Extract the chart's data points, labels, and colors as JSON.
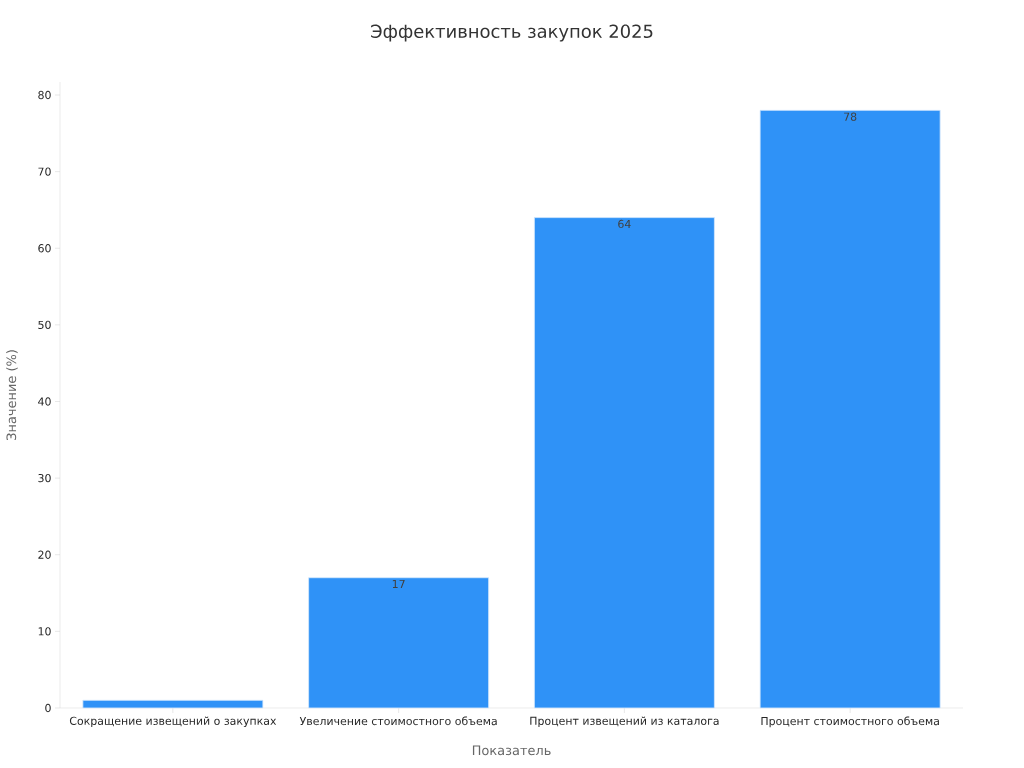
{
  "chart_data": {
    "type": "bar",
    "title": "Эффективность закупок 2025",
    "xlabel": "Показатель",
    "ylabel": "Значение (%)",
    "categories": [
      "Сокращение извещений о закупках",
      "Увеличение стоимостного объема",
      "Процент извещений из каталога",
      "Процент стоимостного объема"
    ],
    "values": [
      1,
      17,
      64,
      78
    ],
    "value_labels": [
      null,
      "17",
      "64",
      "78"
    ],
    "color": "#2f92f7",
    "ylim": [
      0,
      81.7
    ],
    "yticks": [
      0,
      10,
      20,
      30,
      40,
      50,
      60,
      70,
      80
    ],
    "grid": false
  }
}
